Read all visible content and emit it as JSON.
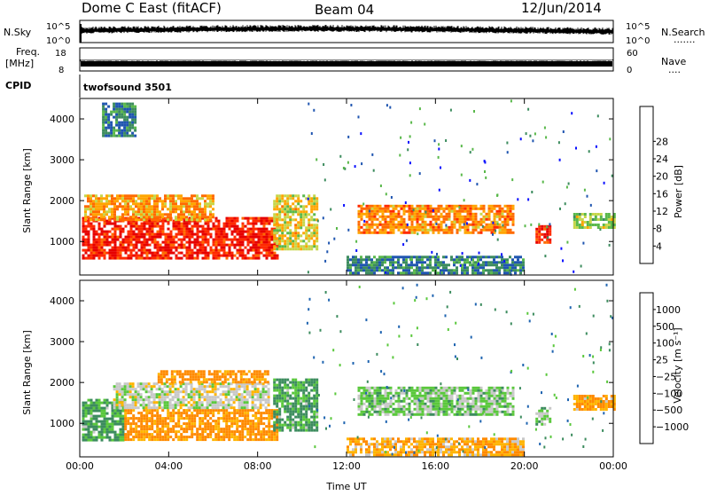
{
  "header": {
    "title": "Dome C East (fitACF)",
    "beam": "Beam 04",
    "date": "12/Jun/2014"
  },
  "sky_panel": {
    "left_label": "N.Sky",
    "right_label": "N.Search",
    "right_dots": "·······",
    "left_ticks": [
      "10^5",
      "10^0"
    ],
    "right_ticks": [
      "10^5",
      "10^0"
    ]
  },
  "freq_panel": {
    "left_label_line1": "Freq.",
    "left_label_line2": "[MHz]",
    "right_label": "Nave",
    "right_dots": "····",
    "left_ticks": [
      "18",
      "8"
    ],
    "right_ticks": [
      "60",
      "0"
    ]
  },
  "cpid": {
    "label": "CPID",
    "value": "twofsound 3501"
  },
  "colors": {
    "power_scale": [
      "#0a10ff",
      "#1f55b0",
      "#3c8c5e",
      "#59b84a",
      "#c6d64a",
      "#ffa500",
      "#ff6a00",
      "#ff2a00",
      "#e60000"
    ],
    "velocity_scale": [
      "#ff0000",
      "#ff3c00",
      "#ff8a00",
      "#ffb400",
      "#c8c8c8",
      "#5ac83c",
      "#3c8c5e",
      "#1f64b0",
      "#1010e0"
    ]
  },
  "chart_data": [
    {
      "type": "heatmap",
      "name": "power",
      "ylabel": "Slant Range [km]",
      "xlabel": "",
      "x_ticks": [
        "00:00",
        "04:00",
        "08:00",
        "12:00",
        "16:00",
        "20:00",
        "00:00"
      ],
      "xlim_hours": [
        0,
        24
      ],
      "y_ticks": [
        1000,
        2000,
        3000,
        4000
      ],
      "ylim": [
        180,
        4500
      ],
      "colorbar": {
        "label": "Power [dB]",
        "ticks": [
          "4",
          "8",
          "12",
          "16",
          "20",
          "24",
          "28"
        ]
      },
      "regions": [
        {
          "t0": 0.1,
          "t1": 8.9,
          "r0": 600,
          "r1": 1600,
          "value": 27
        },
        {
          "t0": 0.2,
          "t1": 6.0,
          "r0": 1550,
          "r1": 2150,
          "value": 20
        },
        {
          "t0": 8.7,
          "t1": 10.7,
          "r0": 800,
          "r1": 2150,
          "value": 17
        },
        {
          "t0": 12.5,
          "t1": 19.5,
          "r0": 1200,
          "r1": 1900,
          "value": 21
        },
        {
          "t0": 12.0,
          "t1": 20.0,
          "r0": 250,
          "r1": 650,
          "value": 8
        },
        {
          "t0": 20.5,
          "t1": 21.1,
          "r0": 950,
          "r1": 1400,
          "value": 27
        },
        {
          "t0": 22.2,
          "t1": 24.0,
          "r0": 1350,
          "r1": 1700,
          "value": 14
        },
        {
          "t0": 1.0,
          "t1": 2.5,
          "r0": 3600,
          "r1": 4400,
          "value": 8
        }
      ]
    },
    {
      "type": "heatmap",
      "name": "velocity",
      "ylabel": "Slant Range [km]",
      "xlabel": "Time UT",
      "x_ticks": [
        "00:00",
        "04:00",
        "08:00",
        "12:00",
        "16:00",
        "20:00",
        "00:00"
      ],
      "xlim_hours": [
        0,
        24
      ],
      "y_ticks": [
        1000,
        2000,
        3000,
        4000
      ],
      "ylim": [
        180,
        4500
      ],
      "colorbar": {
        "label": "Velocity [m s⁻¹]",
        "ticks": [
          "1000",
          "500",
          "100",
          "25",
          "−25",
          "−100",
          "−500",
          "−1000"
        ]
      },
      "regions": [
        {
          "t0": 0.1,
          "t1": 2.0,
          "r0": 600,
          "r1": 1600,
          "value": 120
        },
        {
          "t0": 2.0,
          "t1": 8.9,
          "r0": 600,
          "r1": 1350,
          "value": -150
        },
        {
          "t0": 1.5,
          "t1": 8.5,
          "r0": 1350,
          "r1": 2000,
          "value": 0
        },
        {
          "t0": 3.5,
          "t1": 8.5,
          "r0": 2000,
          "r1": 2300,
          "value": -150
        },
        {
          "t0": 8.7,
          "t1": 10.7,
          "r0": 800,
          "r1": 2100,
          "value": 120
        },
        {
          "t0": 12.5,
          "t1": 19.5,
          "r0": 1200,
          "r1": 1900,
          "value": 50
        },
        {
          "t0": 12.0,
          "t1": 20.0,
          "r0": 250,
          "r1": 650,
          "value": -80
        },
        {
          "t0": 20.5,
          "t1": 21.1,
          "r0": 950,
          "r1": 1400,
          "value": 60
        },
        {
          "t0": 22.2,
          "t1": 24.0,
          "r0": 1350,
          "r1": 1700,
          "value": -100
        }
      ]
    }
  ]
}
